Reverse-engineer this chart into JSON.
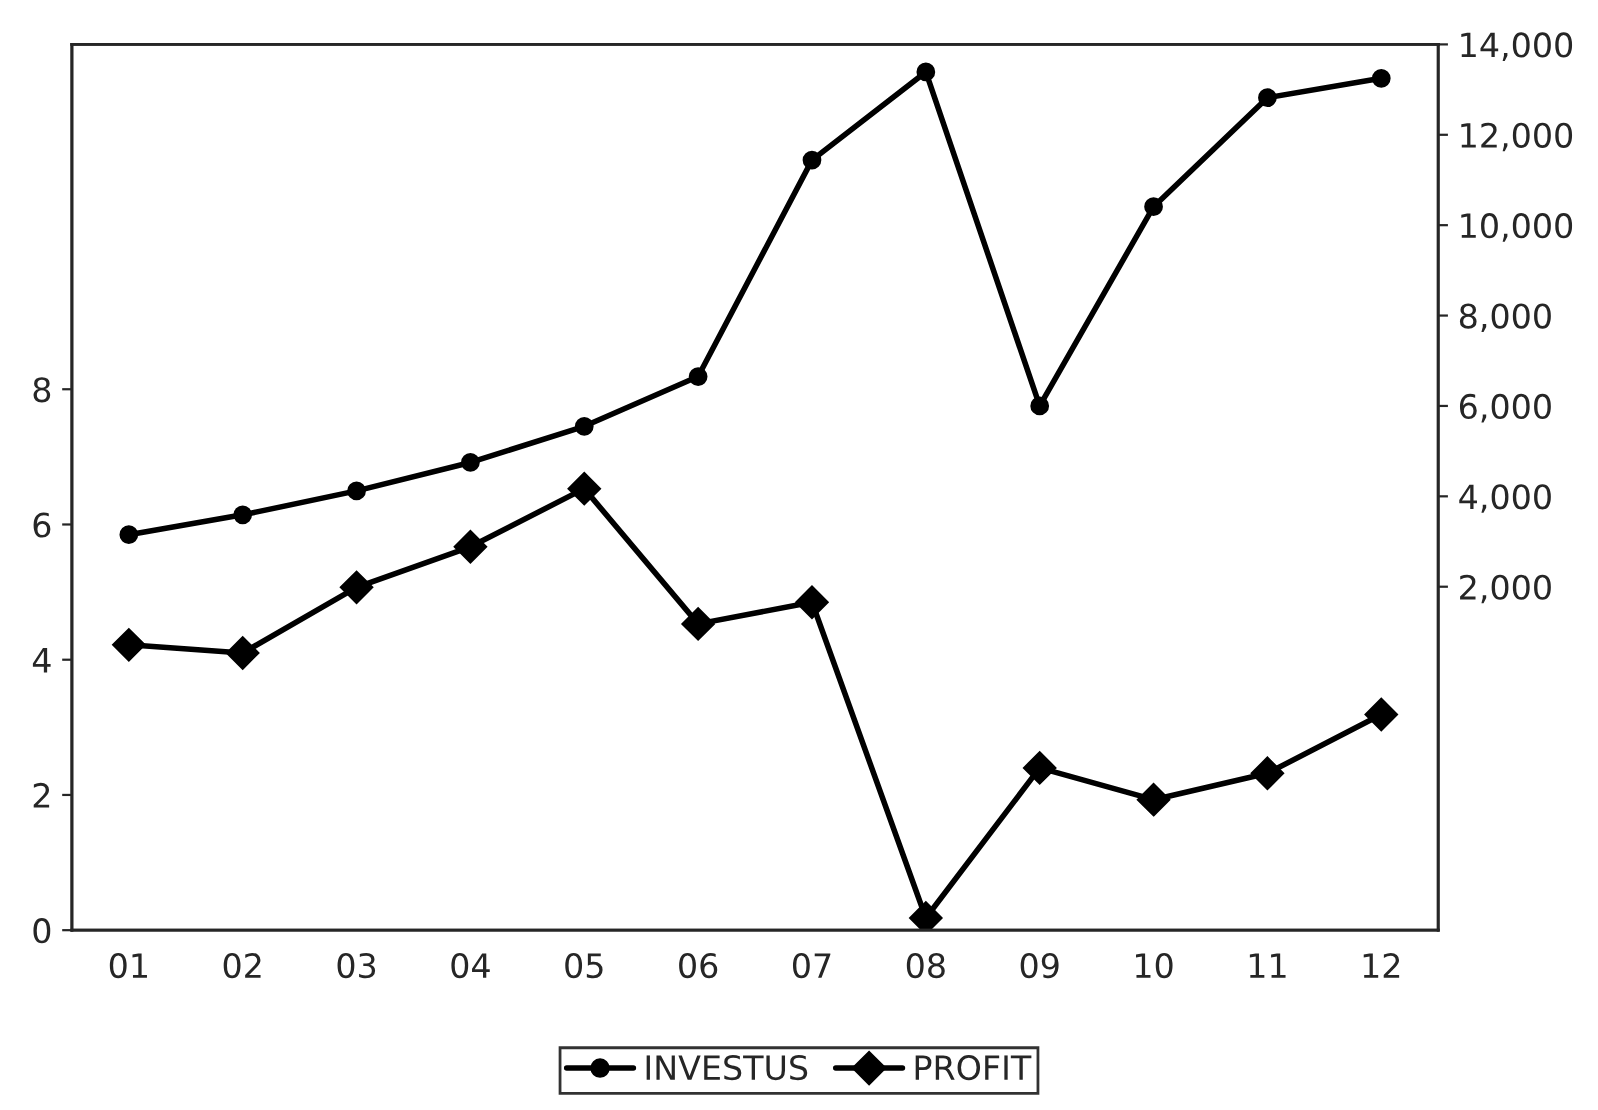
{
  "chart_data": {
    "type": "line",
    "categories": [
      "01",
      "02",
      "03",
      "04",
      "05",
      "06",
      "07",
      "08",
      "09",
      "10",
      "11",
      "12"
    ],
    "series": [
      {
        "name": "INVESTUS",
        "color": "#000000",
        "marker": "circle",
        "axis": "y2",
        "values": [
          3150,
          3590,
          4120,
          4750,
          5550,
          6650,
          11440,
          13390,
          6000,
          10410,
          12820,
          13250
        ]
      },
      {
        "name": "PROFIT",
        "color": "#000000",
        "marker": "diamond",
        "values": [
          4.22,
          4.1,
          5.07,
          5.67,
          6.53,
          4.53,
          4.85,
          0.18,
          2.4,
          1.93,
          2.32,
          3.19
        ]
      }
    ],
    "ylim": [
      0,
      13.1
    ],
    "yticks": [
      0,
      2,
      4,
      6,
      8
    ],
    "y2lim": [
      -5600,
      14000
    ],
    "y2ticks": [
      {
        "value": 2000,
        "label": "2,000"
      },
      {
        "value": 4000,
        "label": "4,000"
      },
      {
        "value": 6000,
        "label": "6,000"
      },
      {
        "value": 8000,
        "label": "8,000"
      },
      {
        "value": 10000,
        "label": "10,000"
      },
      {
        "value": 12000,
        "label": "12,000"
      },
      {
        "value": 14000,
        "label": "14,000"
      }
    ],
    "grid": false,
    "legend": "bottom",
    "line_style": "solid"
  }
}
